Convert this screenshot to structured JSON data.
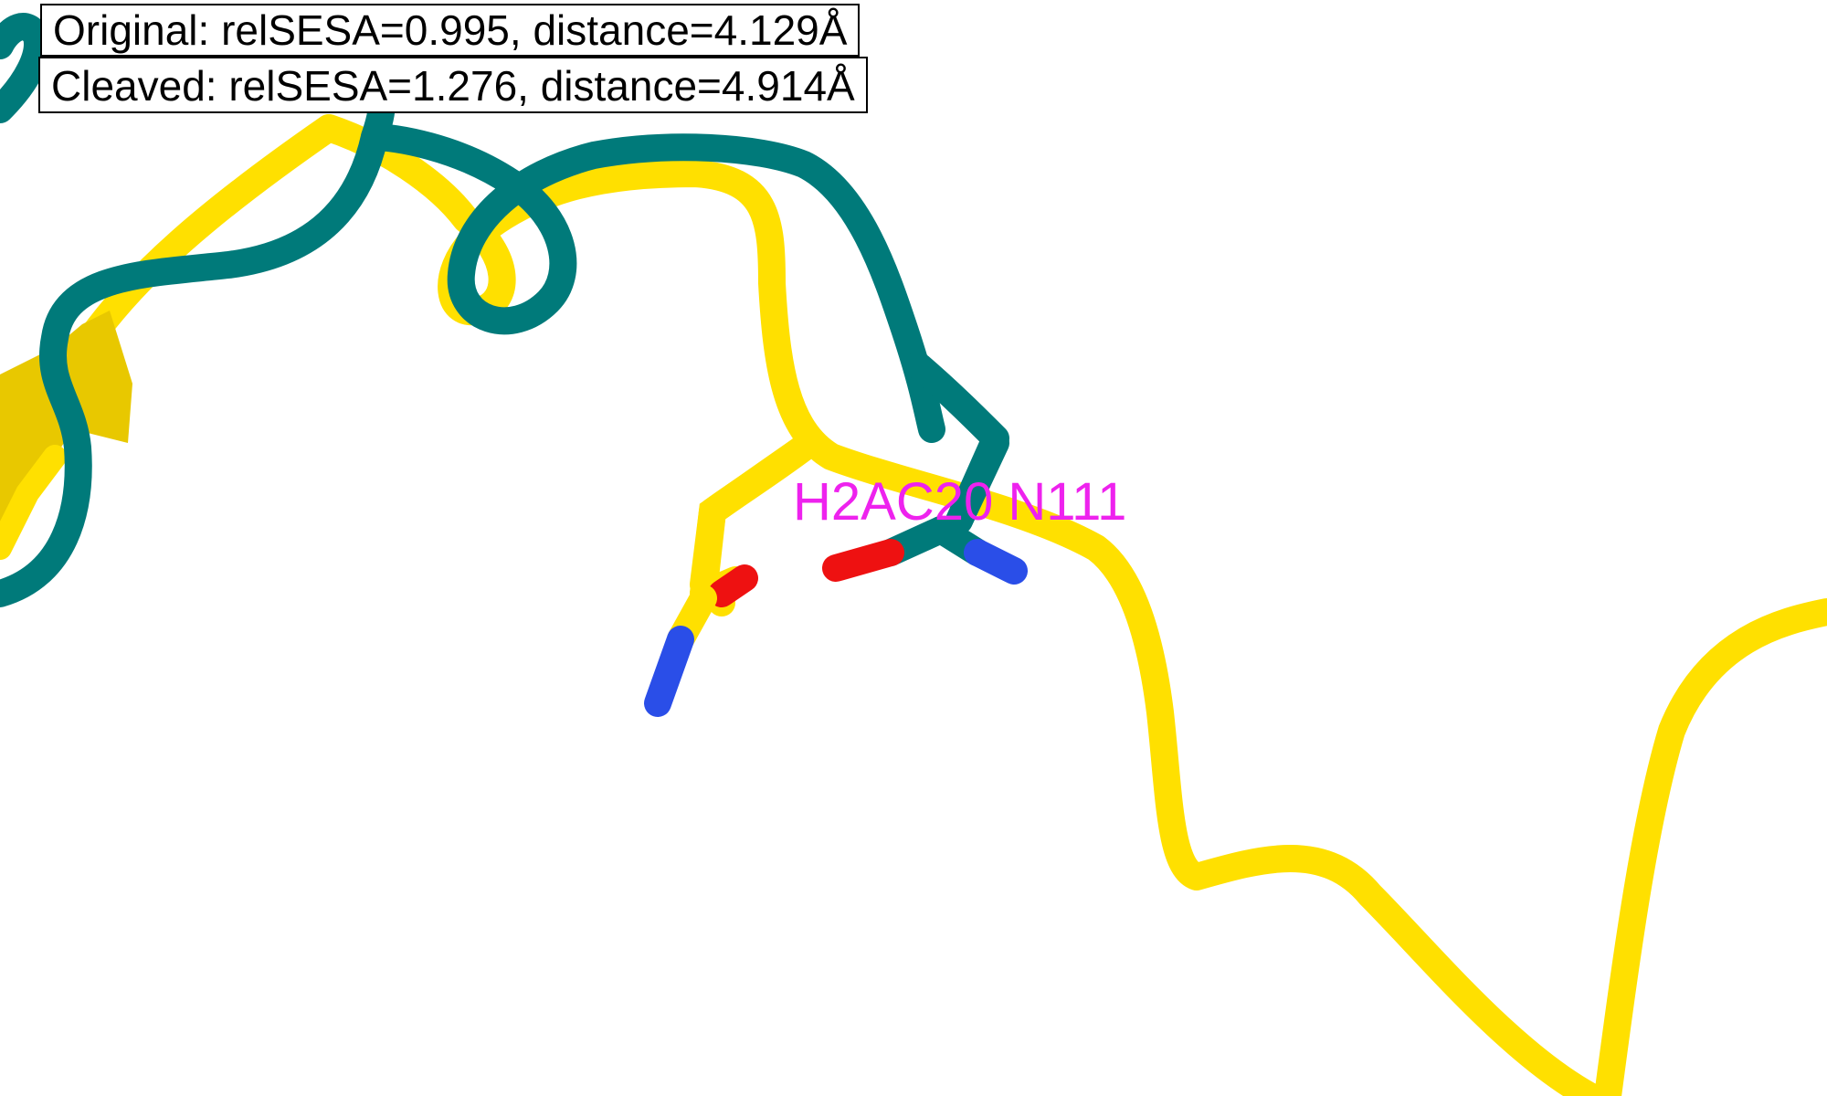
{
  "annotations": {
    "original": "Original: relSESA=0.995, distance=4.129Å",
    "cleaved": "Cleaved: relSESA=1.276, distance=4.914Å"
  },
  "residue_label": "H2AC20 N111",
  "colors": {
    "background": "#ffffff",
    "original_structure": "#007a7a",
    "cleaved_structure": "#ffe000",
    "cleaved_sheet": "#e8c800",
    "oxygen": "#ee1111",
    "nitrogen": "#2a4ee8",
    "label": "#ee22ee"
  }
}
